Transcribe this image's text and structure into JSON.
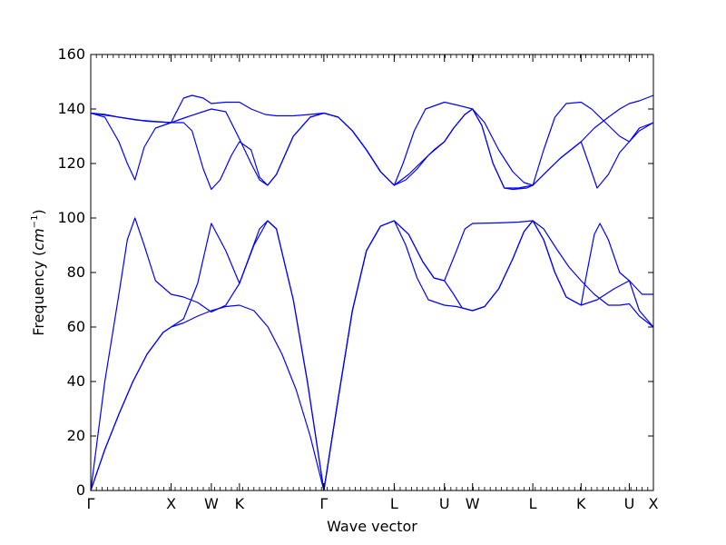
{
  "chart_data": {
    "type": "line",
    "xlabel": "Wave vector",
    "ylabel_text": "Frequency (",
    "ylabel_unit": "cm",
    "ylabel_exp": "−1",
    "ylabel_close": ")",
    "ylim": [
      0,
      160
    ],
    "yticks": [
      0,
      20,
      40,
      60,
      80,
      100,
      120,
      140,
      160
    ],
    "xlim": [
      0,
      2.0
    ],
    "high_symmetry_points": [
      {
        "label": "Γ",
        "x": 0.0
      },
      {
        "label": "X",
        "x": 0.2857
      },
      {
        "label": "W",
        "x": 0.4286
      },
      {
        "label": "K",
        "x": 0.5286
      },
      {
        "label": "Γ",
        "x": 0.8286
      },
      {
        "label": "L",
        "x": 1.0786
      },
      {
        "label": "U",
        "x": 1.2571
      },
      {
        "label": "W",
        "x": 1.3571
      },
      {
        "label": "L",
        "x": 1.5714
      },
      {
        "label": "K",
        "x": 1.7429
      },
      {
        "label": "U",
        "x": 1.9143
      },
      {
        "label": "X",
        "x": 2.0
      }
    ],
    "line_color": "#0000ff",
    "grid": false,
    "series": [
      {
        "points": [
          [
            0,
            0
          ],
          [
            0.05,
            15
          ],
          [
            0.1,
            28
          ],
          [
            0.15,
            40
          ],
          [
            0.2,
            50
          ],
          [
            0.2571,
            58
          ],
          [
            0.2857,
            60
          ],
          [
            0.33,
            61.5
          ],
          [
            0.38,
            64
          ],
          [
            0.4286,
            66
          ],
          [
            0.48,
            67.5
          ],
          [
            0.5286,
            68
          ],
          [
            0.58,
            66
          ],
          [
            0.63,
            60
          ],
          [
            0.68,
            50
          ],
          [
            0.73,
            37
          ],
          [
            0.78,
            20
          ],
          [
            0.8286,
            0
          ]
        ]
      },
      {
        "points": [
          [
            0,
            0
          ],
          [
            0.05,
            15
          ],
          [
            0.1,
            28
          ],
          [
            0.15,
            40
          ],
          [
            0.2,
            50
          ],
          [
            0.2571,
            58
          ],
          [
            0.2857,
            60
          ],
          [
            0.33,
            63
          ],
          [
            0.38,
            76
          ],
          [
            0.4286,
            98
          ],
          [
            0.48,
            88
          ],
          [
            0.5286,
            76
          ],
          [
            0.55,
            82
          ],
          [
            0.6,
            96
          ],
          [
            0.6286,
            99
          ],
          [
            0.66,
            96
          ],
          [
            0.72,
            70
          ],
          [
            0.77,
            40
          ],
          [
            0.8286,
            0
          ]
        ]
      },
      {
        "points": [
          [
            0,
            0
          ],
          [
            0.05,
            40
          ],
          [
            0.1,
            72
          ],
          [
            0.13,
            92
          ],
          [
            0.1571,
            100
          ],
          [
            0.19,
            90
          ],
          [
            0.23,
            77
          ],
          [
            0.2857,
            72
          ],
          [
            0.33,
            71
          ],
          [
            0.38,
            69
          ],
          [
            0.4286,
            65.5
          ],
          [
            0.48,
            68
          ],
          [
            0.5286,
            76
          ],
          [
            0.58,
            90
          ],
          [
            0.6286,
            99
          ],
          [
            0.66,
            96
          ],
          [
            0.72,
            70
          ],
          [
            0.77,
            40
          ],
          [
            0.8286,
            0
          ]
        ]
      },
      {
        "points": [
          [
            0.8286,
            0
          ],
          [
            0.88,
            34
          ],
          [
            0.93,
            66
          ],
          [
            0.98,
            88
          ],
          [
            1.03,
            97
          ],
          [
            1.0786,
            99
          ],
          [
            1.13,
            94
          ],
          [
            1.18,
            84
          ],
          [
            1.22,
            78
          ],
          [
            1.2571,
            77
          ],
          [
            1.29,
            72
          ],
          [
            1.32,
            67
          ],
          [
            1.3571,
            66
          ],
          [
            1.4,
            67.5
          ],
          [
            1.45,
            74
          ],
          [
            1.5,
            85
          ],
          [
            1.54,
            95
          ],
          [
            1.5714,
            99
          ],
          [
            1.61,
            96
          ],
          [
            1.66,
            88
          ],
          [
            1.7,
            82
          ],
          [
            1.7429,
            77
          ],
          [
            1.79,
            72
          ],
          [
            1.84,
            68
          ],
          [
            1.88,
            68
          ],
          [
            1.9143,
            68.5
          ],
          [
            1.95,
            64
          ],
          [
            2.0,
            60
          ]
        ]
      },
      {
        "points": [
          [
            0.8286,
            0
          ],
          [
            0.88,
            34
          ],
          [
            0.93,
            66
          ],
          [
            0.98,
            88
          ],
          [
            1.03,
            97
          ],
          [
            1.0786,
            99
          ],
          [
            1.12,
            90
          ],
          [
            1.16,
            78
          ],
          [
            1.2,
            70
          ],
          [
            1.2571,
            68
          ],
          [
            1.3,
            67.5
          ],
          [
            1.3571,
            66
          ],
          [
            1.4,
            67.5
          ],
          [
            1.45,
            74
          ],
          [
            1.5,
            85
          ],
          [
            1.54,
            95
          ],
          [
            1.5714,
            99
          ],
          [
            1.61,
            92
          ],
          [
            1.65,
            80
          ],
          [
            1.69,
            71
          ],
          [
            1.7429,
            68
          ],
          [
            1.8,
            70
          ],
          [
            1.86,
            74
          ],
          [
            1.9143,
            77
          ],
          [
            1.95,
            66
          ],
          [
            2.0,
            60
          ]
        ]
      },
      {
        "points": [
          [
            0.8286,
            0
          ],
          [
            0.88,
            34
          ],
          [
            0.93,
            66
          ],
          [
            0.98,
            88
          ],
          [
            1.03,
            97
          ],
          [
            1.0786,
            99
          ],
          [
            1.13,
            94
          ],
          [
            1.18,
            84
          ],
          [
            1.22,
            78
          ],
          [
            1.2571,
            77
          ],
          [
            1.3,
            88
          ],
          [
            1.33,
            96
          ],
          [
            1.3571,
            98
          ],
          [
            1.45,
            98.2
          ],
          [
            1.52,
            98.5
          ],
          [
            1.5714,
            99
          ],
          [
            1.61,
            92
          ],
          [
            1.65,
            80
          ],
          [
            1.69,
            71
          ],
          [
            1.7429,
            68
          ],
          [
            1.76,
            78
          ],
          [
            1.79,
            94
          ],
          [
            1.81,
            98
          ],
          [
            1.84,
            92
          ],
          [
            1.88,
            80
          ],
          [
            1.9143,
            77
          ],
          [
            1.96,
            72
          ],
          [
            2.0,
            72
          ]
        ]
      },
      {
        "points": [
          [
            0,
            138.5
          ],
          [
            0.05,
            137
          ],
          [
            0.1,
            128
          ],
          [
            0.13,
            120
          ],
          [
            0.1571,
            114
          ],
          [
            0.19,
            126
          ],
          [
            0.23,
            133
          ],
          [
            0.2857,
            135
          ],
          [
            0.33,
            135
          ],
          [
            0.36,
            132
          ],
          [
            0.4,
            118
          ],
          [
            0.4286,
            110.5
          ],
          [
            0.46,
            114
          ],
          [
            0.5,
            123
          ],
          [
            0.5286,
            128
          ],
          [
            0.57,
            125
          ],
          [
            0.6,
            115
          ],
          [
            0.6286,
            112
          ],
          [
            0.66,
            116
          ],
          [
            0.72,
            130
          ],
          [
            0.78,
            137
          ],
          [
            0.8286,
            138.5
          ],
          [
            0.88,
            137
          ],
          [
            0.93,
            132
          ],
          [
            0.98,
            125
          ],
          [
            1.03,
            117
          ],
          [
            1.0786,
            112
          ],
          [
            1.13,
            116
          ],
          [
            1.18,
            121
          ],
          [
            1.22,
            125
          ],
          [
            1.2571,
            128
          ],
          [
            1.29,
            133
          ],
          [
            1.33,
            138
          ],
          [
            1.3571,
            140
          ],
          [
            1.4,
            135
          ],
          [
            1.45,
            125
          ],
          [
            1.5,
            117
          ],
          [
            1.54,
            113
          ],
          [
            1.5714,
            112
          ],
          [
            1.62,
            117
          ],
          [
            1.67,
            122
          ],
          [
            1.7429,
            128
          ],
          [
            1.77,
            120
          ],
          [
            1.8,
            111
          ],
          [
            1.84,
            116
          ],
          [
            1.88,
            124
          ],
          [
            1.9143,
            128
          ],
          [
            1.95,
            133
          ],
          [
            2.0,
            135
          ]
        ]
      },
      {
        "points": [
          [
            0,
            138.5
          ],
          [
            0.1,
            137
          ],
          [
            0.2,
            135.5
          ],
          [
            0.2857,
            135
          ],
          [
            0.34,
            137
          ],
          [
            0.4286,
            140
          ],
          [
            0.48,
            139
          ],
          [
            0.5286,
            129
          ],
          [
            0.57,
            120
          ],
          [
            0.6,
            114
          ],
          [
            0.6286,
            112
          ],
          [
            0.66,
            116
          ],
          [
            0.72,
            130
          ],
          [
            0.78,
            137
          ],
          [
            0.8286,
            138.5
          ],
          [
            0.88,
            137
          ],
          [
            0.93,
            132
          ],
          [
            0.98,
            125
          ],
          [
            1.03,
            117
          ],
          [
            1.0786,
            112
          ],
          [
            1.12,
            114
          ],
          [
            1.16,
            118
          ],
          [
            1.2,
            123
          ],
          [
            1.2571,
            128
          ],
          [
            1.29,
            133
          ],
          [
            1.33,
            138
          ],
          [
            1.3571,
            140
          ],
          [
            1.39,
            134
          ],
          [
            1.43,
            120
          ],
          [
            1.47,
            111
          ],
          [
            1.5,
            110.5
          ],
          [
            1.55,
            111
          ],
          [
            1.5714,
            112
          ],
          [
            1.62,
            117
          ],
          [
            1.67,
            122
          ],
          [
            1.7429,
            128
          ],
          [
            1.79,
            133
          ],
          [
            1.84,
            137
          ],
          [
            1.88,
            140
          ],
          [
            1.9143,
            142
          ],
          [
            1.95,
            143
          ],
          [
            2.0,
            145
          ]
        ]
      },
      {
        "points": [
          [
            0,
            138.5
          ],
          [
            0.05,
            138
          ],
          [
            0.1,
            137
          ],
          [
            0.16,
            136
          ],
          [
            0.22,
            135.5
          ],
          [
            0.2857,
            135
          ],
          [
            0.3,
            138
          ],
          [
            0.33,
            144
          ],
          [
            0.36,
            145
          ],
          [
            0.4,
            144
          ],
          [
            0.4286,
            142
          ],
          [
            0.48,
            142.5
          ],
          [
            0.5286,
            142.5
          ],
          [
            0.57,
            140
          ],
          [
            0.62,
            138
          ],
          [
            0.66,
            137.5
          ],
          [
            0.72,
            137.5
          ],
          [
            0.78,
            138
          ],
          [
            0.8286,
            138.5
          ],
          [
            0.88,
            137
          ],
          [
            0.93,
            132
          ],
          [
            0.98,
            125
          ],
          [
            1.03,
            117
          ],
          [
            1.0786,
            112
          ],
          [
            1.11,
            120
          ],
          [
            1.15,
            132
          ],
          [
            1.19,
            140
          ],
          [
            1.2571,
            142.5
          ],
          [
            1.3,
            141.5
          ],
          [
            1.3571,
            140
          ],
          [
            1.39,
            134
          ],
          [
            1.43,
            120
          ],
          [
            1.47,
            111
          ],
          [
            1.52,
            111
          ],
          [
            1.5714,
            112
          ],
          [
            1.61,
            125
          ],
          [
            1.65,
            137
          ],
          [
            1.69,
            142
          ],
          [
            1.7429,
            142.5
          ],
          [
            1.78,
            140
          ],
          [
            1.83,
            135
          ],
          [
            1.88,
            130
          ],
          [
            1.9143,
            128
          ],
          [
            1.95,
            132
          ],
          [
            2.0,
            135
          ]
        ]
      }
    ]
  }
}
